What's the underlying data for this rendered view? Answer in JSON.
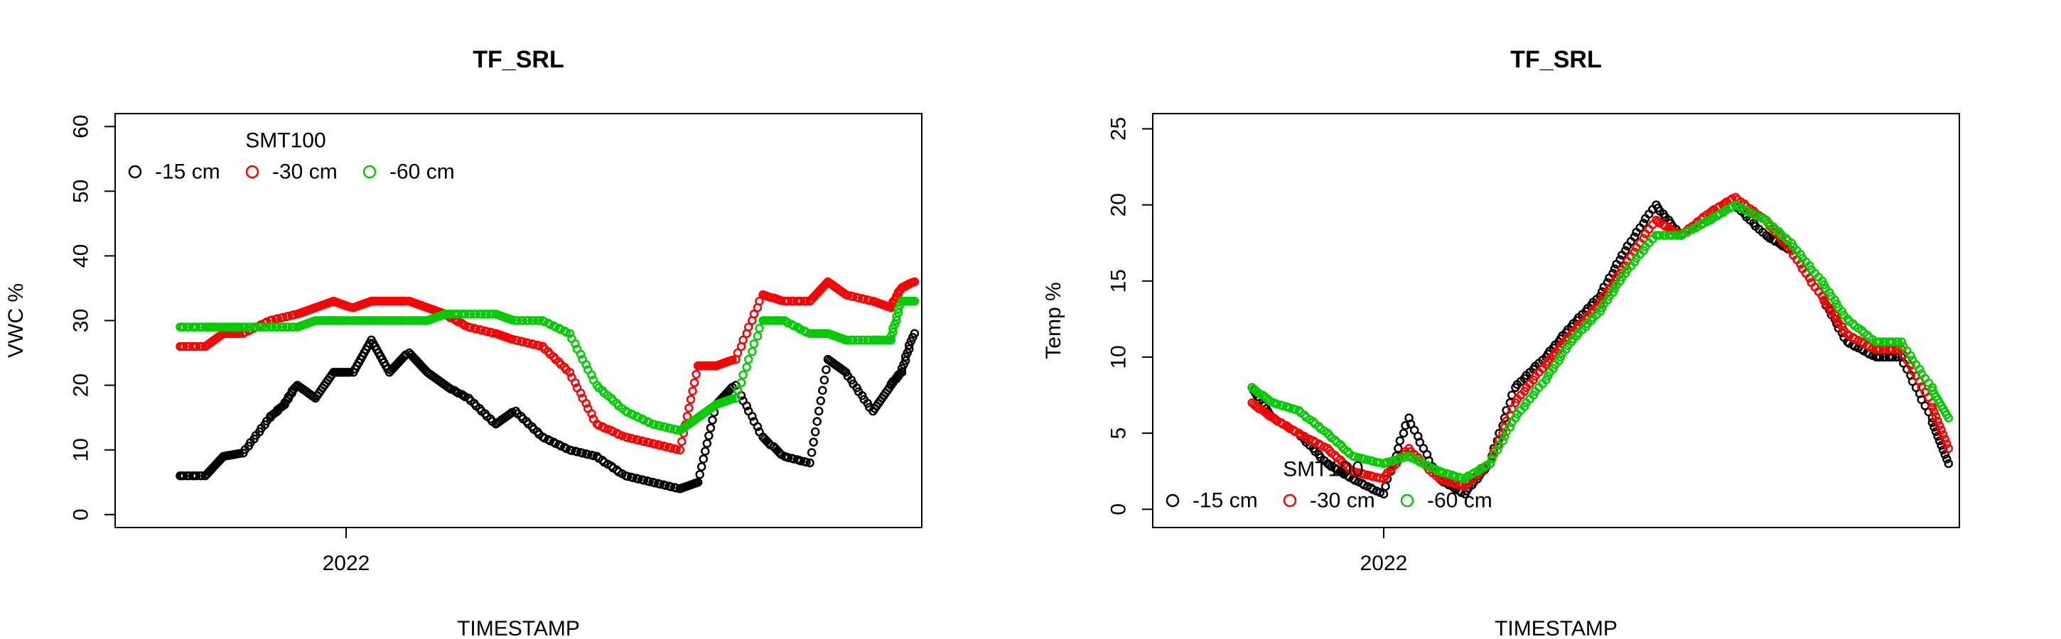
{
  "chart_data": [
    {
      "type": "scatter",
      "title": "TF_SRL",
      "xlabel": "TIMESTAMP",
      "ylabel": "VWC %",
      "x_tick_labels": [
        "2022"
      ],
      "y_ticks": [
        0,
        10,
        20,
        30,
        40,
        50,
        60
      ],
      "ylim": [
        -2,
        62
      ],
      "xlim": [
        "2021-08-26",
        "2022-11-16"
      ],
      "grid": false,
      "legend": {
        "title": "SMT100",
        "placement": "top-left",
        "entries": [
          "-15 cm",
          "-30 cm",
          "-60 cm"
        ]
      },
      "series": [
        {
          "name": "-15 cm",
          "color": "#000000",
          "x": [
            "2021-10-01",
            "2021-10-15",
            "2021-10-25",
            "2021-11-05",
            "2021-11-20",
            "2021-11-28",
            "2021-12-05",
            "2021-12-15",
            "2021-12-25",
            "2022-01-05",
            "2022-01-15",
            "2022-01-25",
            "2022-02-05",
            "2022-02-15",
            "2022-02-25",
            "2022-03-10",
            "2022-03-25",
            "2022-04-05",
            "2022-04-20",
            "2022-05-05",
            "2022-05-20",
            "2022-06-05",
            "2022-06-20",
            "2022-07-05",
            "2022-07-15",
            "2022-07-25",
            "2022-08-05",
            "2022-08-20",
            "2022-09-01",
            "2022-09-15",
            "2022-09-25",
            "2022-10-05",
            "2022-10-20",
            "2022-10-30",
            "2022-11-05",
            "2022-11-12"
          ],
          "y": [
            6,
            6,
            9,
            9.5,
            15,
            17,
            20,
            18,
            22,
            22,
            27,
            22,
            25,
            22,
            20,
            18,
            14,
            16,
            12,
            10,
            9,
            6,
            5,
            4,
            5,
            17,
            20,
            12,
            9,
            8,
            24,
            22,
            16,
            20,
            22,
            28
          ]
        },
        {
          "name": "-30 cm",
          "color": "#ff0000",
          "x": [
            "2021-10-01",
            "2021-10-15",
            "2021-10-25",
            "2021-11-05",
            "2021-11-20",
            "2021-12-05",
            "2021-12-15",
            "2021-12-25",
            "2022-01-05",
            "2022-01-15",
            "2022-01-25",
            "2022-02-05",
            "2022-02-15",
            "2022-02-25",
            "2022-03-10",
            "2022-03-25",
            "2022-04-05",
            "2022-04-20",
            "2022-05-05",
            "2022-05-20",
            "2022-06-05",
            "2022-06-20",
            "2022-07-05",
            "2022-07-15",
            "2022-07-25",
            "2022-08-05",
            "2022-08-20",
            "2022-09-01",
            "2022-09-15",
            "2022-09-25",
            "2022-10-05",
            "2022-10-20",
            "2022-10-30",
            "2022-11-05",
            "2022-11-12"
          ],
          "y": [
            26,
            26,
            28,
            28,
            30,
            31,
            32,
            33,
            32,
            33,
            33,
            33,
            32,
            31,
            29,
            28,
            27,
            26,
            22,
            14,
            12,
            11,
            10,
            23,
            23,
            24,
            34,
            33,
            33,
            36,
            34,
            33,
            32,
            35,
            36
          ]
        },
        {
          "name": "-60 cm",
          "color": "#00cc00",
          "x": [
            "2021-10-01",
            "2021-10-15",
            "2021-10-25",
            "2021-11-05",
            "2021-11-20",
            "2021-12-05",
            "2021-12-15",
            "2021-12-25",
            "2022-01-05",
            "2022-01-15",
            "2022-01-25",
            "2022-02-05",
            "2022-02-15",
            "2022-02-25",
            "2022-03-10",
            "2022-03-25",
            "2022-04-05",
            "2022-04-20",
            "2022-05-05",
            "2022-05-20",
            "2022-06-05",
            "2022-06-20",
            "2022-07-05",
            "2022-07-15",
            "2022-07-25",
            "2022-08-05",
            "2022-08-20",
            "2022-09-01",
            "2022-09-15",
            "2022-09-25",
            "2022-10-05",
            "2022-10-20",
            "2022-10-30",
            "2022-11-05",
            "2022-11-12"
          ],
          "y": [
            29,
            29,
            29,
            29,
            29,
            29,
            30,
            30,
            30,
            30,
            30,
            30,
            30,
            31,
            31,
            31,
            30,
            30,
            28,
            20,
            16,
            14,
            13,
            15,
            17,
            18,
            30,
            30,
            28,
            28,
            27,
            27,
            27,
            33,
            33
          ]
        }
      ]
    },
    {
      "type": "scatter",
      "title": "TF_SRL",
      "xlabel": "TIMESTAMP",
      "ylabel": "Temp %",
      "x_tick_labels": [
        "2022"
      ],
      "y_ticks": [
        0,
        5,
        10,
        15,
        20,
        25
      ],
      "ylim": [
        -1.2,
        26
      ],
      "xlim": [
        "2021-08-26",
        "2022-11-16"
      ],
      "grid": false,
      "legend": {
        "title": "SMT100",
        "placement": "bottom-left",
        "entries": [
          "-15 cm",
          "-30 cm",
          "-60 cm"
        ]
      },
      "series": [
        {
          "name": "-15 cm",
          "color": "#000000",
          "x": [
            "2021-10-20",
            "2021-11-01",
            "2021-11-15",
            "2021-12-01",
            "2021-12-15",
            "2022-01-01",
            "2022-01-15",
            "2022-02-01",
            "2022-02-15",
            "2022-03-01",
            "2022-03-15",
            "2022-04-01",
            "2022-04-15",
            "2022-05-01",
            "2022-05-15",
            "2022-06-01",
            "2022-06-15",
            "2022-07-01",
            "2022-07-15",
            "2022-08-01",
            "2022-08-15",
            "2022-09-01",
            "2022-09-15",
            "2022-10-01",
            "2022-10-15",
            "2022-11-01",
            "2022-11-10"
          ],
          "y": [
            8,
            6,
            5,
            3,
            2,
            1,
            6,
            2,
            1,
            3,
            8,
            10,
            12,
            14,
            17,
            20,
            18,
            19,
            20,
            18,
            17,
            14,
            11,
            10,
            10,
            6,
            3
          ]
        },
        {
          "name": "-30 cm",
          "color": "#ff0000",
          "x": [
            "2021-10-20",
            "2021-11-01",
            "2021-11-15",
            "2021-12-01",
            "2021-12-15",
            "2022-01-01",
            "2022-01-15",
            "2022-02-01",
            "2022-02-15",
            "2022-03-01",
            "2022-03-15",
            "2022-04-01",
            "2022-04-15",
            "2022-05-01",
            "2022-05-15",
            "2022-06-01",
            "2022-06-15",
            "2022-07-01",
            "2022-07-15",
            "2022-08-01",
            "2022-08-15",
            "2022-09-01",
            "2022-09-15",
            "2022-10-01",
            "2022-10-15",
            "2022-11-01",
            "2022-11-10"
          ],
          "y": [
            7,
            6,
            5,
            4,
            2.5,
            2,
            4,
            2,
            1.5,
            3,
            7,
            9.5,
            11.5,
            13.5,
            16,
            19,
            18,
            19.5,
            20.5,
            19,
            17,
            14,
            11.5,
            10.5,
            10.5,
            7,
            4
          ]
        },
        {
          "name": "-60 cm",
          "color": "#00cc00",
          "x": [
            "2021-10-20",
            "2021-11-01",
            "2021-11-15",
            "2021-12-01",
            "2021-12-15",
            "2022-01-01",
            "2022-01-15",
            "2022-02-01",
            "2022-02-15",
            "2022-03-01",
            "2022-03-15",
            "2022-04-01",
            "2022-04-15",
            "2022-05-01",
            "2022-05-15",
            "2022-06-01",
            "2022-06-15",
            "2022-07-01",
            "2022-07-15",
            "2022-08-01",
            "2022-08-15",
            "2022-09-01",
            "2022-09-15",
            "2022-10-01",
            "2022-10-15",
            "2022-11-01",
            "2022-11-10"
          ],
          "y": [
            8,
            7,
            6.5,
            5,
            3.5,
            3,
            3.5,
            2.5,
            2,
            3,
            6,
            8.5,
            11,
            13,
            15.5,
            18,
            18,
            19,
            20,
            19,
            17.5,
            15,
            12.5,
            11,
            11,
            8,
            6
          ]
        }
      ]
    }
  ]
}
